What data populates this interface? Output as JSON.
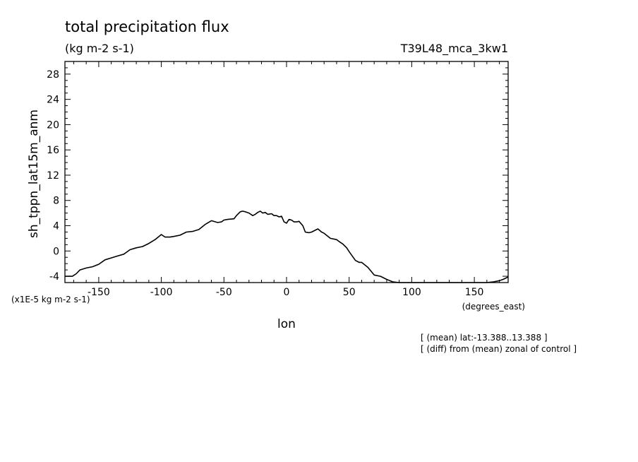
{
  "chart_data": {
    "type": "line",
    "title": "total precipitation flux",
    "units": "(kg m-2 s-1)",
    "run_id": "T39L48_mca_3kw1",
    "xlabel": "lon",
    "x_units": "(degrees_east)",
    "ylabel": "sh_tppn_lat15m_anm",
    "y_scale_note": "(x1E-5 kg m-2 s-1)",
    "notes": [
      "[ (mean) lat:-13.388..13.388 ]",
      "[ (diff) from (mean) zonal of control ]"
    ],
    "xlim": [
      -177,
      177
    ],
    "ylim": [
      -5,
      30
    ],
    "x_ticks": [
      -150,
      -100,
      -50,
      0,
      50,
      100,
      150
    ],
    "x_tick_labels": [
      "-150",
      "-100",
      "-50",
      "0",
      "50",
      "100",
      "150"
    ],
    "y_ticks": [
      -4,
      0,
      4,
      8,
      12,
      16,
      20,
      24,
      28
    ],
    "y_tick_labels": [
      "-4",
      "0",
      "4",
      "8",
      "12",
      "16",
      "20",
      "24",
      "28"
    ],
    "grid": false,
    "series": [
      {
        "x": [
          -177,
          -171,
          -168,
          -165,
          -160,
          -155,
          -150,
          -145,
          -140,
          -135,
          -130,
          -125,
          -120,
          -115,
          -110,
          -105,
          -100,
          -97,
          -93,
          -90,
          -85,
          -80,
          -75,
          -70,
          -65,
          -60,
          -55,
          -52,
          -50,
          -47,
          -42,
          -40,
          -37,
          -35,
          -33,
          -30,
          -27,
          -25,
          -23,
          -21,
          -19,
          -17,
          -15,
          -12,
          -10,
          -8,
          -6,
          -4,
          -2,
          0,
          2,
          4,
          6,
          8,
          10,
          13,
          15,
          18,
          20,
          25,
          28,
          30,
          35,
          40,
          42,
          45,
          48,
          50,
          55,
          58,
          60,
          65,
          70,
          75,
          80,
          85,
          90,
          95,
          100,
          110,
          120,
          130,
          140,
          150,
          160,
          165,
          170,
          173,
          177
        ],
        "values": [
          -4.0,
          -4.0,
          -3.6,
          -3.0,
          -2.7,
          -2.5,
          -2.1,
          -1.4,
          -1.1,
          -0.8,
          -0.5,
          0.2,
          0.5,
          0.7,
          1.2,
          1.8,
          2.6,
          2.2,
          2.2,
          2.3,
          2.5,
          3.0,
          3.1,
          3.4,
          4.2,
          4.8,
          4.5,
          4.6,
          4.9,
          5.0,
          5.1,
          5.6,
          6.2,
          6.3,
          6.2,
          6.0,
          5.6,
          5.8,
          6.1,
          6.3,
          6.0,
          6.1,
          5.8,
          5.9,
          5.6,
          5.6,
          5.4,
          5.5,
          4.6,
          4.4,
          5.0,
          4.9,
          4.6,
          4.6,
          4.7,
          4.0,
          3.0,
          2.9,
          3.0,
          3.5,
          3.0,
          2.8,
          2.0,
          1.8,
          1.5,
          1.1,
          0.5,
          -0.1,
          -1.5,
          -1.8,
          -1.8,
          -2.6,
          -3.8,
          -4.0,
          -4.5,
          -4.9,
          -5.0,
          -5.0,
          -5.0,
          -5.0,
          -5.0,
          -5.0,
          -5.0,
          -5.0,
          -5.0,
          -4.9,
          -4.7,
          -4.5,
          -4.1
        ]
      }
    ]
  }
}
